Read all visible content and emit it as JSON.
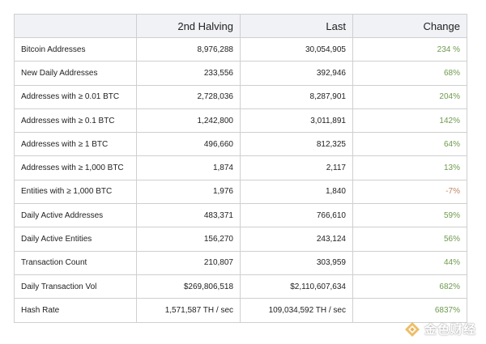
{
  "table": {
    "headers": [
      "",
      "2nd Halving",
      "Last",
      "Change"
    ],
    "rows": [
      {
        "metric": "Bitcoin Addresses",
        "halving": "8,976,288",
        "last": "30,054,905",
        "change": "234 %"
      },
      {
        "metric": "New Daily Addresses",
        "halving": "233,556",
        "last": "392,946",
        "change": "68%"
      },
      {
        "metric": "Addresses with ≥ 0.01 BTC",
        "halving": "2,728,036",
        "last": "8,287,901",
        "change": "204%"
      },
      {
        "metric": "Addresses with ≥ 0.1 BTC",
        "halving": "1,242,800",
        "last": "3,011,891",
        "change": "142%"
      },
      {
        "metric": "Addresses with ≥ 1 BTC",
        "halving": "496,660",
        "last": "812,325",
        "change": "64%"
      },
      {
        "metric": "Addresses with ≥ 1,000 BTC",
        "halving": "1,874",
        "last": "2,117",
        "change": "13%"
      },
      {
        "metric": "Entities with ≥ 1,000 BTC",
        "halving": "1,976",
        "last": "1,840",
        "change": "-7%"
      },
      {
        "metric": "Daily Active Addresses",
        "halving": "483,371",
        "last": "766,610",
        "change": "59%"
      },
      {
        "metric": "Daily Active Entities",
        "halving": "156,270",
        "last": "243,124",
        "change": "56%"
      },
      {
        "metric": "Transaction Count",
        "halving": "210,807",
        "last": "303,959",
        "change": "44%"
      },
      {
        "metric": "Daily Transaction Vol",
        "halving": "$269,806,518",
        "last": "$2,110,607,634",
        "change": "682%"
      },
      {
        "metric": "Hash Rate",
        "halving": "1,571,587 TH / sec",
        "last": "109,034,592 TH / sec",
        "change": "6837%"
      }
    ]
  },
  "colors": {
    "header_bg": "#f1f2f6",
    "border": "#cfcfcf",
    "change_positive": "#6f9a4e",
    "change_negative": "#c28565"
  },
  "watermark": {
    "text": "金色财经",
    "icon": "jinse-logo-icon"
  }
}
